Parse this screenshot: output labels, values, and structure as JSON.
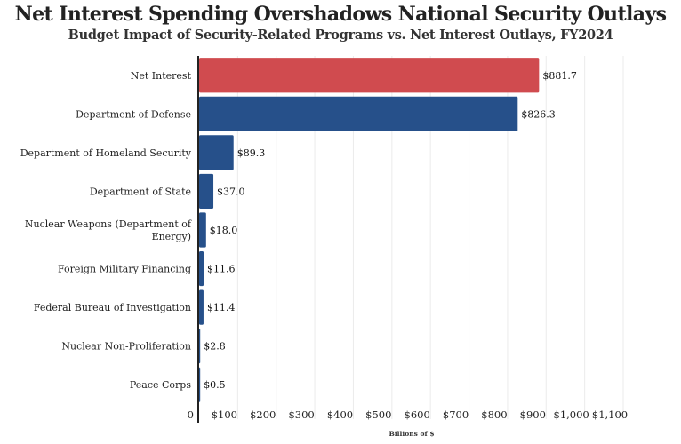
{
  "chart_data": {
    "type": "bar",
    "orientation": "horizontal",
    "title": "Net Interest Spending Overshadows National Security Outlays",
    "subtitle": "Budget Impact of Security-Related Programs vs. Net Interest Outlays, FY2024",
    "xlabel": "Billions of $",
    "ylabel": "",
    "xlim": [
      0,
      1100
    ],
    "grid": true,
    "legend": "none",
    "categories": [
      [
        "Net Interest"
      ],
      [
        "Department of Defense"
      ],
      [
        "Department of Homeland Security"
      ],
      [
        "Department of State"
      ],
      [
        "Nuclear Weapons (Department of",
        "Energy)"
      ],
      [
        "Foreign Military Financing"
      ],
      [
        "Federal Bureau of Investigation"
      ],
      [
        "Nuclear Non-Proliferation"
      ],
      [
        "Peace Corps"
      ]
    ],
    "values": [
      881.7,
      826.3,
      89.3,
      37.0,
      18.0,
      11.6,
      11.4,
      2.8,
      0.5
    ],
    "value_labels": [
      "$881.7",
      "$826.3",
      "$89.3",
      "$37.0",
      "$18.0",
      "$11.6",
      "$11.4",
      "$2.8",
      "$0.5"
    ],
    "colors": [
      "#d04b4f",
      "#26508a",
      "#26508a",
      "#26508a",
      "#26508a",
      "#26508a",
      "#26508a",
      "#26508a",
      "#26508a"
    ],
    "xticks": [
      0,
      100,
      200,
      300,
      400,
      500,
      600,
      700,
      800,
      900,
      1000,
      1100
    ],
    "xtick_labels": [
      "0",
      "$100",
      "$200",
      "$300",
      "$400",
      "$500",
      "$600",
      "$700",
      "$800",
      "$900",
      "$1,000",
      "$1,100"
    ]
  }
}
